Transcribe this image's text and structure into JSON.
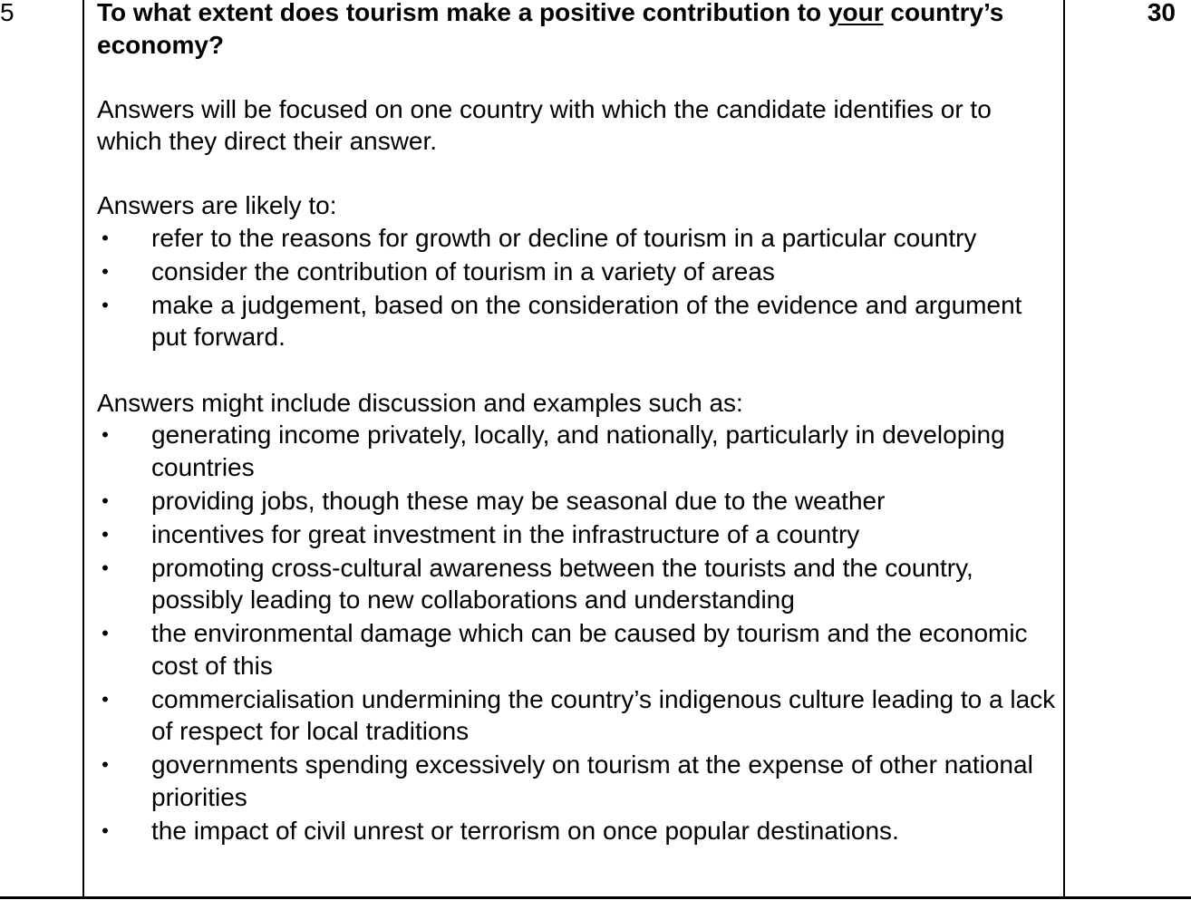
{
  "question": {
    "number": "5",
    "marks": "30",
    "title_before": "To what extent does tourism make a positive contribution to ",
    "title_underlined": "your",
    "title_after": " country’s economy?"
  },
  "intro": "Answers will be focused on one country with which the candidate identifies or to which they direct their answer.",
  "likely": {
    "heading": "Answers are likely to:",
    "items": [
      "refer to the reasons for growth or decline of tourism in a particular country",
      "consider the contribution of tourism in a variety of areas",
      "make a judgement, based on the consideration of the evidence and argument put forward."
    ]
  },
  "examples": {
    "heading": "Answers might include discussion and examples such as:",
    "items": [
      "generating income privately, locally, and nationally, particularly in developing countries",
      "providing jobs, though these may be seasonal due to the weather",
      "incentives for great investment in the infrastructure of a country",
      "promoting cross-cultural awareness between the tourists and the country, possibly leading to new collaborations and understanding",
      "the environmental damage which can be caused by tourism and the economic cost of this",
      "commercialisation undermining the country’s indigenous culture leading to a lack of respect for local traditions",
      "governments spending excessively on tourism at the expense of other national priorities",
      "the impact of civil unrest or terrorism on once popular destinations."
    ]
  },
  "bullet_glyph": "•"
}
